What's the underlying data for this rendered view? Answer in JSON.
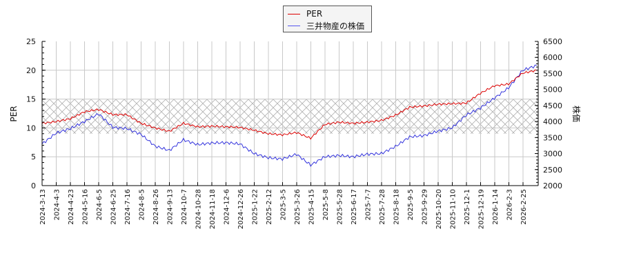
{
  "chart_data": {
    "type": "line",
    "title": "",
    "legend": {
      "position": "top-center",
      "entries": [
        {
          "label": "PER",
          "color": "#dd0000"
        },
        {
          "label": "三井物産の株価",
          "color": "#3333dd"
        }
      ]
    },
    "xlabel": "",
    "ylabel_left": "PER",
    "ylabel_right": "株価",
    "ylim_left": [
      0,
      25
    ],
    "ylim_right": [
      2000,
      6500
    ],
    "yticks_left": [
      0,
      5,
      10,
      15,
      20,
      25
    ],
    "yticks_right": [
      2000,
      2500,
      3000,
      3500,
      4000,
      4500,
      5000,
      5500,
      6000,
      6500
    ],
    "grid": true,
    "hatched_band_per": [
      9,
      15
    ],
    "x_tick_labels": [
      "2024-3-13",
      "2024-4-3",
      "2024-4-23",
      "2024-5-16",
      "2024-6-5",
      "2024-6-25",
      "2024-7-16",
      "2024-8-5",
      "2024-8-26",
      "2024-9-13",
      "2024-10-7",
      "2024-10-28",
      "2024-11-18",
      "2024-12-6",
      "2024-12-26",
      "2025-1-22",
      "2025-2-12",
      "2025-3-5",
      "2025-3-26",
      "2025-4-15",
      "2025-5-8",
      "2025-5-28",
      "2025-6-17",
      "2025-7-7",
      "2025-7-28",
      "2025-8-18",
      "2025-9-5",
      "2025-9-29",
      "2025-10-20",
      "2025-11-10",
      "2025-12-1",
      "2025-12-19",
      "2026-1-14",
      "2026-2-3",
      "2026-2-25"
    ],
    "x": [
      "2024-3-13",
      "2024-4-3",
      "2024-4-23",
      "2024-5-16",
      "2024-6-5",
      "2024-6-25",
      "2024-7-16",
      "2024-8-5",
      "2024-8-26",
      "2024-9-13",
      "2024-10-7",
      "2024-10-28",
      "2024-11-18",
      "2024-12-6",
      "2024-12-26",
      "2025-1-22",
      "2025-2-12",
      "2025-3-5",
      "2025-3-26",
      "2025-4-15",
      "2025-5-8",
      "2025-5-28",
      "2025-6-17",
      "2025-7-7",
      "2025-7-28",
      "2025-8-18",
      "2025-9-5",
      "2025-9-29",
      "2025-10-20",
      "2025-11-10",
      "2025-12-1",
      "2025-12-19",
      "2026-1-14",
      "2026-2-3",
      "2026-2-25",
      "2026-3-10"
    ],
    "series": [
      {
        "name": "PER",
        "axis": "left",
        "color": "#dd0000",
        "values": [
          10.8,
          11.1,
          11.6,
          12.8,
          13.2,
          12.3,
          12.3,
          10.8,
          10.0,
          9.4,
          10.8,
          10.2,
          10.3,
          10.2,
          10.1,
          9.6,
          9.0,
          8.8,
          9.2,
          8.2,
          10.6,
          11.0,
          10.8,
          11.0,
          11.3,
          12.2,
          13.6,
          13.8,
          14.1,
          14.2,
          14.3,
          16.0,
          17.3,
          17.6,
          19.5,
          20.0
        ]
      },
      {
        "name": "三井物産の株価",
        "axis": "right",
        "color": "#3333dd",
        "values": [
          3300,
          3640,
          3780,
          4000,
          4240,
          3820,
          3780,
          3600,
          3230,
          3100,
          3430,
          3280,
          3330,
          3340,
          3300,
          3000,
          2870,
          2830,
          2980,
          2640,
          2900,
          2940,
          2900,
          2980,
          3000,
          3220,
          3520,
          3560,
          3700,
          3800,
          4200,
          4420,
          4730,
          5050,
          5600,
          5750
        ]
      }
    ]
  },
  "axes": {
    "left_label": "PER",
    "right_label": "株価"
  }
}
